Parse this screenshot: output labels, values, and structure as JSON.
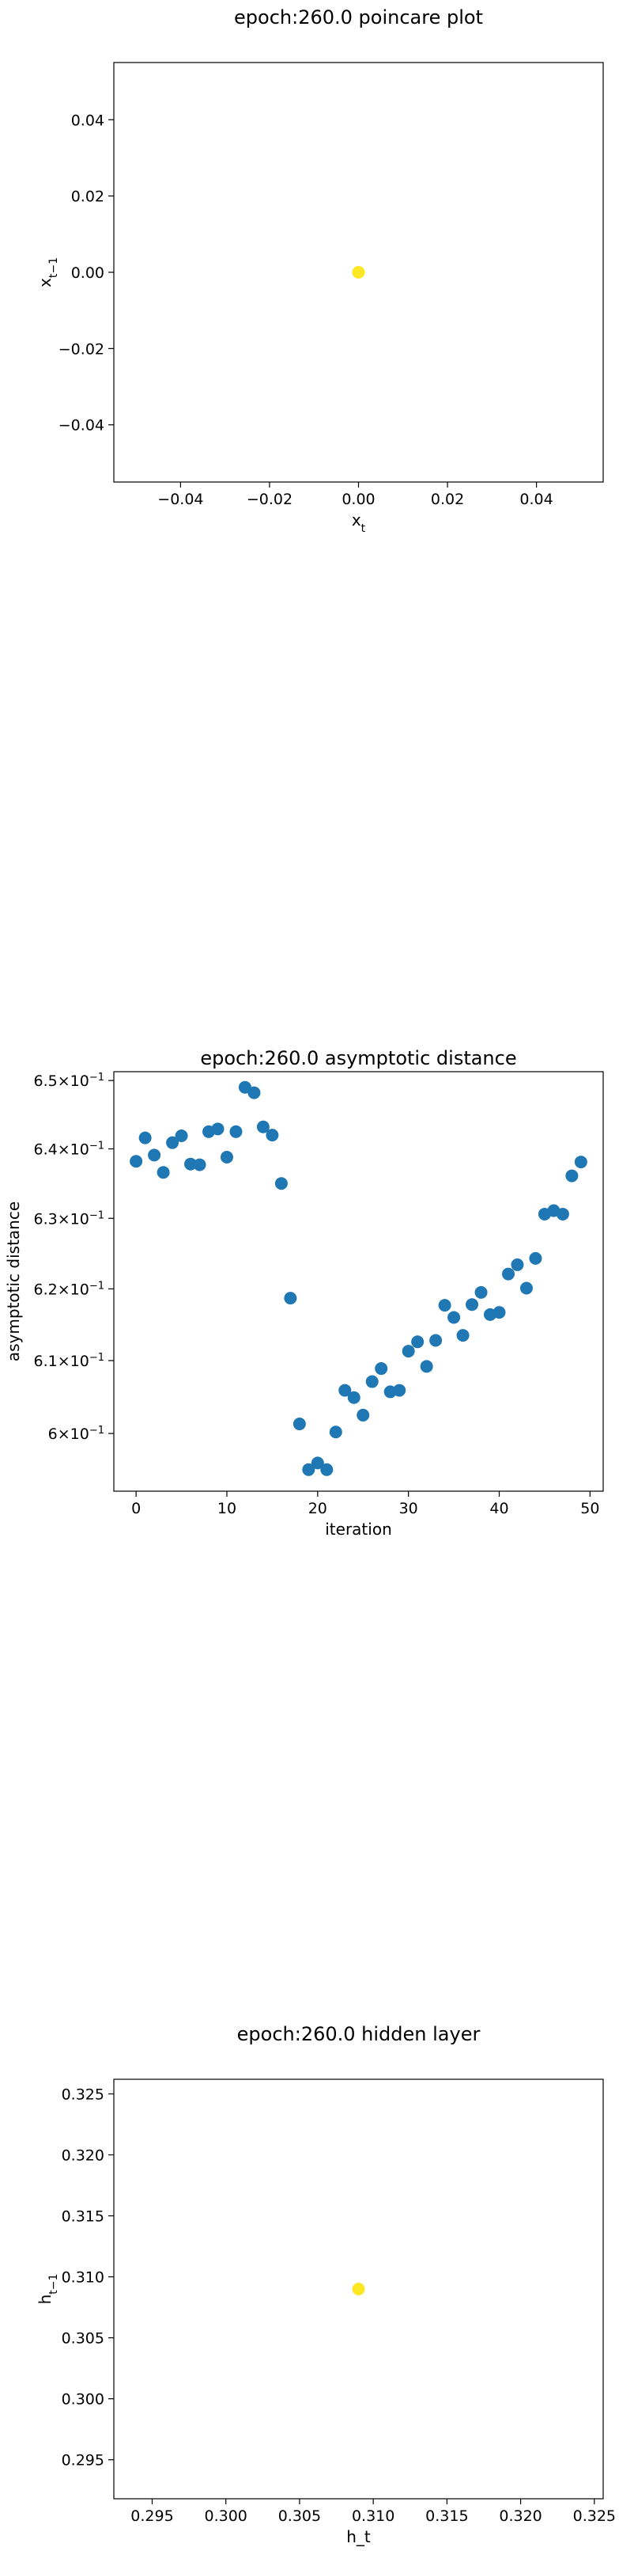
{
  "chart_data": [
    {
      "type": "scatter",
      "title": "epoch:260.0 poincare plot",
      "xlabel": "x",
      "xlabel_sub": "t",
      "ylabel": "x",
      "ylabel_sub": "t−1",
      "xlim": [
        -0.055,
        0.055
      ],
      "ylim": [
        -0.055,
        0.055
      ],
      "x_ticks": [
        -0.04,
        -0.02,
        0.0,
        0.02,
        0.04
      ],
      "x_tick_labels": [
        "−0.04",
        "−0.02",
        "0.00",
        "0.02",
        "0.04"
      ],
      "y_ticks": [
        -0.04,
        -0.02,
        0.0,
        0.02,
        0.04
      ],
      "y_tick_labels": [
        "−0.04",
        "−0.02",
        "0.00",
        "0.02",
        "0.04"
      ],
      "points": [
        {
          "x": 0.0,
          "y": 0.0
        }
      ],
      "color": "#fde725"
    },
    {
      "type": "scatter",
      "title": "epoch:260.0 asymptotic distance",
      "xlabel": "iteration",
      "ylabel": "asymptotic distance",
      "yscale": "log",
      "xlim": [
        -2.45,
        51.45
      ],
      "ylim": [
        0.5922,
        0.6513
      ],
      "x_ticks": [
        0,
        10,
        20,
        30,
        40,
        50
      ],
      "x_tick_labels": [
        "0",
        "10",
        "20",
        "30",
        "40",
        "50"
      ],
      "y_ticks": [
        0.6,
        0.61,
        0.62,
        0.63,
        0.64,
        0.65
      ],
      "y_tick_mantissas": [
        "6",
        "6.1",
        "6.2",
        "6.3",
        "6.4",
        "6.5"
      ],
      "y_tick_base": "10",
      "y_tick_exp": "−1",
      "x": [
        0,
        1,
        2,
        3,
        4,
        5,
        6,
        7,
        8,
        9,
        10,
        11,
        12,
        13,
        14,
        15,
        16,
        17,
        18,
        19,
        20,
        21,
        22,
        23,
        24,
        25,
        26,
        27,
        28,
        29,
        30,
        31,
        32,
        33,
        34,
        35,
        36,
        37,
        38,
        39,
        40,
        41,
        42,
        43,
        44,
        45,
        46,
        47,
        48,
        49
      ],
      "y": [
        0.6382,
        0.6416,
        0.6391,
        0.6366,
        0.6409,
        0.6419,
        0.6378,
        0.6377,
        0.6425,
        0.6429,
        0.6388,
        0.6425,
        0.649,
        0.6482,
        0.6432,
        0.642,
        0.635,
        0.6187,
        0.6013,
        0.5951,
        0.596,
        0.5951,
        0.6002,
        0.6059,
        0.6049,
        0.6025,
        0.6071,
        0.6089,
        0.6057,
        0.6059,
        0.6113,
        0.6126,
        0.6092,
        0.6128,
        0.6177,
        0.616,
        0.6135,
        0.6178,
        0.6195,
        0.6164,
        0.6167,
        0.6221,
        0.6234,
        0.6201,
        0.6243,
        0.6306,
        0.6311,
        0.6306,
        0.6361,
        0.6381
      ],
      "color": "#1f77b4"
    },
    {
      "type": "scatter",
      "title": "epoch:260.0 hidden layer",
      "xlabel": "h_t",
      "ylabel": "h",
      "ylabel_sub": "t−1",
      "xlim": [
        0.2924,
        0.3256
      ],
      "ylim": [
        0.2918,
        0.3262
      ],
      "x_ticks": [
        0.295,
        0.3,
        0.305,
        0.31,
        0.315,
        0.32,
        0.325
      ],
      "x_tick_labels": [
        "0.295",
        "0.300",
        "0.305",
        "0.310",
        "0.315",
        "0.320",
        "0.325"
      ],
      "y_ticks": [
        0.295,
        0.3,
        0.305,
        0.31,
        0.315,
        0.32,
        0.325
      ],
      "y_tick_labels": [
        "0.295",
        "0.300",
        "0.305",
        "0.310",
        "0.315",
        "0.320",
        "0.325"
      ],
      "points": [
        {
          "x": 0.309,
          "y": 0.309
        }
      ],
      "color": "#fde725"
    }
  ]
}
